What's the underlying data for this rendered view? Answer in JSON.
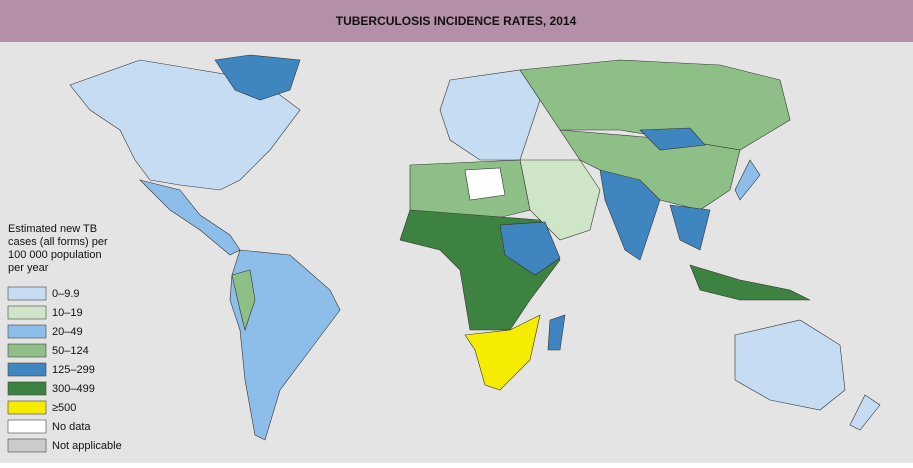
{
  "title": "TUBERCULOSIS INCIDENCE RATES, 2014",
  "legend": {
    "title": [
      "Estimated new TB",
      "cases (all forms) per",
      "100 000 population",
      "per year"
    ],
    "items": [
      {
        "label": "0–9.9",
        "color": "#c6dcf2"
      },
      {
        "label": "10–19",
        "color": "#cfe5c8"
      },
      {
        "label": "20–49",
        "color": "#8dbde9"
      },
      {
        "label": "50–124",
        "color": "#8ebf87"
      },
      {
        "label": "125–299",
        "color": "#3f86c0"
      },
      {
        "label": "300–499",
        "color": "#3d8240"
      },
      {
        "label": "≥500",
        "color": "#f5ec00"
      },
      {
        "label": "No data",
        "color": "#ffffff"
      },
      {
        "label": "Not applicable",
        "color": "#cccccc"
      }
    ]
  }
}
